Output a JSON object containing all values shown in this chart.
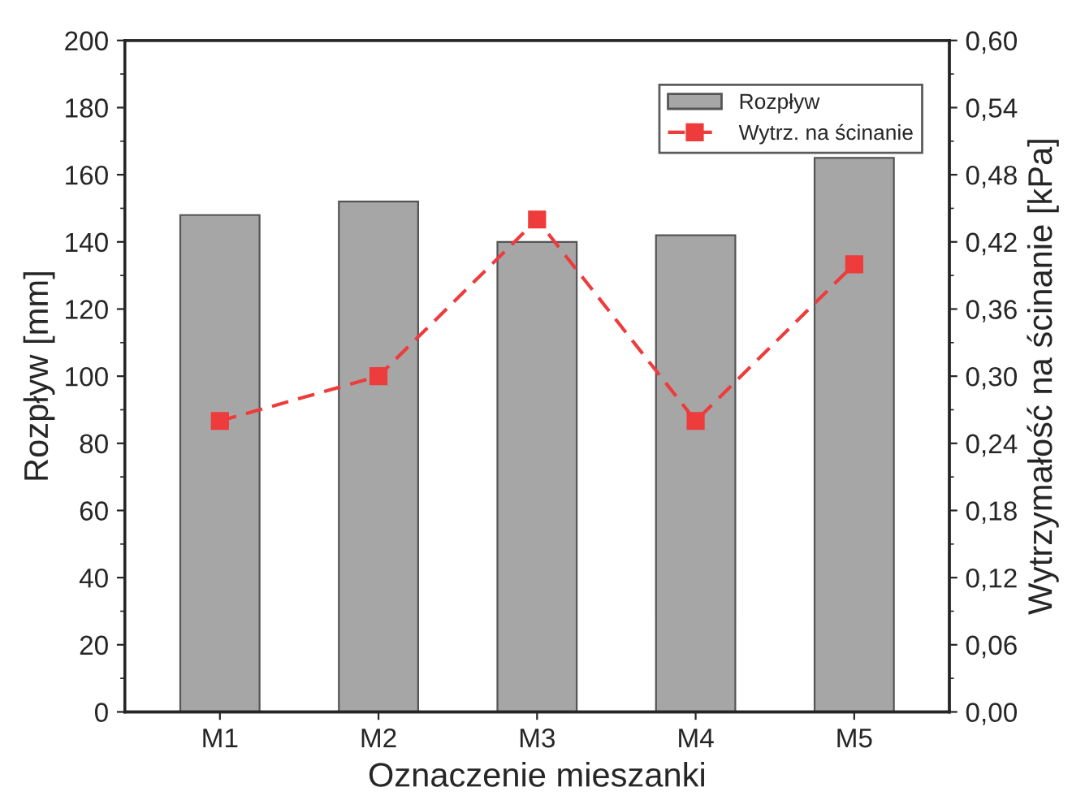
{
  "chart_data": {
    "type": "bar",
    "xlabel": "Oznaczenie mieszanki",
    "ylabel": "Rozpływ [mm]",
    "y2label": "Wytrzymałość na ścinanie [kPa]",
    "categories": [
      "M1",
      "M2",
      "M3",
      "M4",
      "M5"
    ],
    "series": [
      {
        "name": "Rozpływ",
        "color": "#a6a6a6",
        "values": [
          148,
          152,
          140,
          142,
          165
        ]
      },
      {
        "name": "Wytrz. na ścinanie",
        "type": "line",
        "axis": "y2",
        "color": "#ee3b3b",
        "marker": "square",
        "line_style": "dashed",
        "values": [
          0.26,
          0.3,
          0.44,
          0.26,
          0.4
        ]
      }
    ],
    "ylim": [
      0,
      200
    ],
    "yticks": [
      0,
      20,
      40,
      60,
      80,
      100,
      120,
      140,
      160,
      180,
      200
    ],
    "y2lim": [
      0,
      0.6
    ],
    "y2ticks": [
      {
        "value": 0,
        "label": "0,00"
      },
      {
        "value": 0.06,
        "label": "0,06"
      },
      {
        "value": 0.12,
        "label": "0,12"
      },
      {
        "value": 0.18,
        "label": "0,18"
      },
      {
        "value": 0.24,
        "label": "0,24"
      },
      {
        "value": 0.3,
        "label": "0,30"
      },
      {
        "value": 0.36,
        "label": "0,36"
      },
      {
        "value": 0.42,
        "label": "0,42"
      },
      {
        "value": 0.48,
        "label": "0,48"
      },
      {
        "value": 0.54,
        "label": "0,54"
      },
      {
        "value": 0.6,
        "label": "0,60"
      }
    ],
    "grid": false,
    "legend": "top right"
  }
}
